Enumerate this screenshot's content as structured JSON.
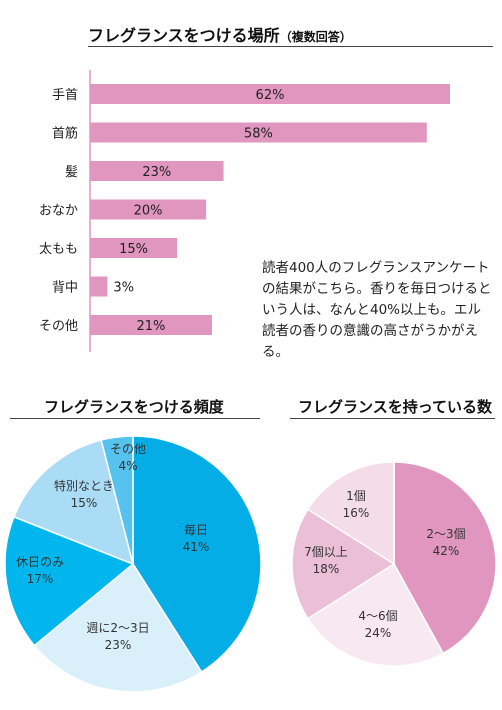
{
  "chart_data": [
    {
      "type": "bar",
      "orientation": "horizontal",
      "title": "フレグランスをつける場所",
      "title_note": "（複数回答）",
      "categories": [
        "手首",
        "首筋",
        "髪",
        "おなか",
        "太もも",
        "背中",
        "その他"
      ],
      "values": [
        62,
        58,
        23,
        20,
        15,
        3,
        21
      ],
      "value_labels": [
        "62%",
        "58%",
        "23%",
        "20%",
        "15%",
        "3%",
        "21%"
      ],
      "xlim": [
        0,
        70
      ],
      "color": "#e096be",
      "grid": false
    },
    {
      "type": "pie",
      "title": "フレグランスをつける頻度",
      "labels": [
        "毎日",
        "週に2〜3日",
        "休日のみ",
        "特別なとき",
        "その他"
      ],
      "values": [
        41,
        23,
        17,
        15,
        4
      ],
      "value_labels": [
        "41%",
        "23%",
        "17%",
        "15%",
        "4%"
      ],
      "colors": [
        "#05ade6",
        "#d9f0fb",
        "#00b6ec",
        "#abdcf5",
        "#56c3ee"
      ]
    },
    {
      "type": "pie",
      "title": "フレグランスを持っている数",
      "labels": [
        "2〜3個",
        "4〜6個",
        "7個以上",
        "1個"
      ],
      "values": [
        42,
        24,
        18,
        16
      ],
      "value_labels": [
        "42%",
        "24%",
        "18%",
        "16%"
      ],
      "colors": [
        "#e096be",
        "#f8e8f1",
        "#ebbfd7",
        "#f5dce9"
      ]
    }
  ],
  "caption": "読者400人のフレグランスアンケートの結果がこちら。香りを毎日つけるという人は、なんと40%以上も。エル読者の香りの意識の高さがうかがえる。"
}
